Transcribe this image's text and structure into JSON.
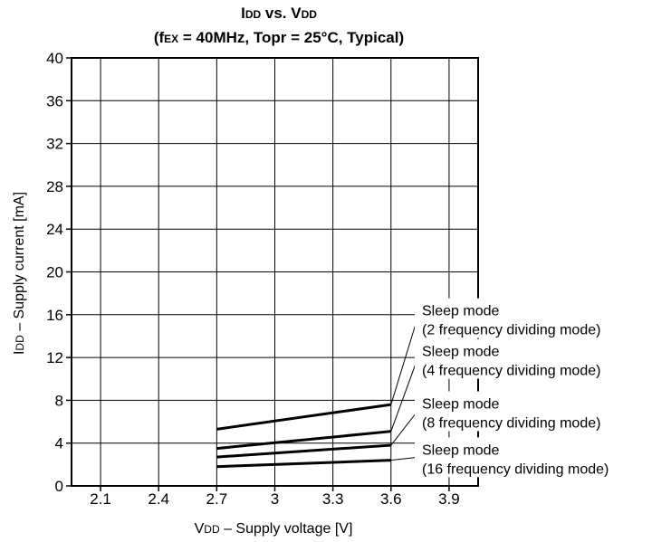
{
  "chart_data": {
    "type": "line",
    "title": {
      "main_prefix": "I",
      "main_prefix_sub": "DD",
      "main_mid": " vs. V",
      "main_suffix_sub": "DD",
      "line2_open": "(f",
      "line2_sub": "EX",
      "line2_rest": " = 40MHz, Topr = 25°C, Typical)"
    },
    "xlabel": {
      "main": "V",
      "sub": "DD",
      "rest": " – Supply voltage [V]"
    },
    "ylabel": {
      "main": "I",
      "sub": "DD",
      "rest": " – Supply current [mA]"
    },
    "xlim": [
      1.95,
      4.05
    ],
    "ylim": [
      0,
      40
    ],
    "xticks": [
      2.1,
      2.4,
      2.7,
      3,
      3.3,
      3.6,
      3.9
    ],
    "xtick_labels": [
      "2.1",
      "2.4",
      "2.7",
      "3",
      "3.3",
      "3.6",
      "3.9"
    ],
    "yticks": [
      0,
      4,
      8,
      12,
      16,
      20,
      24,
      28,
      32,
      36,
      40
    ],
    "ytick_labels": [
      "0",
      "4",
      "8",
      "12",
      "16",
      "20",
      "24",
      "28",
      "32",
      "36",
      "40"
    ],
    "grid": true,
    "series": [
      {
        "label_line1": "Sleep mode",
        "label_line2": "(2 frequency dividing mode)",
        "x": [
          2.7,
          3.6
        ],
        "y": [
          5.3,
          7.6
        ],
        "label_y": 15.0,
        "label_anchor": 7.6
      },
      {
        "label_line1": "Sleep mode",
        "label_line2": "(4 frequency dividing mode)",
        "x": [
          2.7,
          3.6
        ],
        "y": [
          3.5,
          5.1
        ],
        "label_y": 11.2,
        "label_anchor": 5.1
      },
      {
        "label_line1": "Sleep mode",
        "label_line2": "(8 frequency dividing mode)",
        "x": [
          2.7,
          3.6
        ],
        "y": [
          2.7,
          3.8
        ],
        "label_y": 6.3,
        "label_anchor": 3.8
      },
      {
        "label_line1": "Sleep mode",
        "label_line2": "(16 frequency dividing mode)",
        "x": [
          2.7,
          3.6
        ],
        "y": [
          1.8,
          2.4
        ],
        "label_y": 2.0,
        "label_anchor": 2.4
      }
    ]
  }
}
